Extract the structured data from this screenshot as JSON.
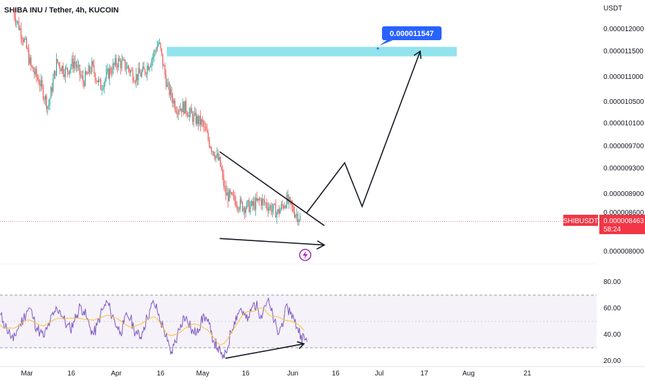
{
  "chart_data": {
    "type": "candlestick",
    "title": "SHIBA INU / Tether, 4h, KUCOIN",
    "currency_label": "USDT",
    "y_ticks": [
      "0.000012000",
      "0.000011500",
      "0.000011000",
      "0.000010500",
      "0.000010100",
      "0.000009700",
      "0.000009300",
      "0.000008900",
      "0.000008600",
      "0.000008000"
    ],
    "x_ticks": [
      "Mar",
      "16",
      "Apr",
      "16",
      "May",
      "16",
      "Jun",
      "16",
      "Jul",
      "17",
      "Aug",
      "21"
    ],
    "ticker": {
      "symbol": "SHIBUSDT",
      "price": "0.000008463",
      "countdown": "58:24"
    },
    "target": {
      "label": "0.000011547",
      "value": 1.1547e-05
    },
    "target_zone": {
      "low": 1.14e-05,
      "high": 1.16e-05
    },
    "price_series": {
      "x": [
        "Feb 26",
        "Mar 1",
        "Mar 3",
        "Mar 6",
        "Mar 9",
        "Mar 12",
        "Mar 15",
        "Mar 18",
        "Mar 21",
        "Mar 24",
        "Mar 27",
        "Mar 30",
        "Apr 2",
        "Apr 5",
        "Apr 8",
        "Apr 11",
        "Apr 14",
        "Apr 16",
        "Apr 19",
        "Apr 22",
        "Apr 25",
        "Apr 28",
        "May 1",
        "May 4",
        "May 7",
        "May 9",
        "May 12",
        "May 15",
        "May 18",
        "May 21",
        "May 24",
        "May 27",
        "May 30",
        "Jun 2",
        "Jun 4"
      ],
      "close": [
        1.24e-05,
        1.17e-05,
        1.12e-05,
        1.09e-05,
        1.04e-05,
        1.13e-05,
        1.11e-05,
        1.13e-05,
        1.09e-05,
        1.12e-05,
        1.08e-05,
        1.11e-05,
        1.13e-05,
        1.12e-05,
        1.1e-05,
        1.11e-05,
        1.14e-05,
        1.17e-05,
        1.08e-05,
        1.04e-05,
        1.04e-05,
        1.02e-05,
        1.01e-05,
        9.7e-06,
        9.4e-06,
        8.9e-06,
        8.8e-06,
        8.7e-06,
        8.7e-06,
        8.8e-06,
        8.7e-06,
        8.6e-06,
        8.8e-06,
        8.6e-06,
        8.5e-06
      ]
    },
    "pattern": {
      "name": "falling wedge",
      "upper_line": [
        [
          "May 7",
          9.6e-06
        ],
        [
          "Jun 12",
          8.4e-06
        ]
      ],
      "lower_line": [
        [
          "May 7",
          8.2e-06
        ],
        [
          "Jun 12",
          8.1e-06
        ]
      ],
      "projection": [
        [
          "Jun 6",
          8.6e-06
        ],
        [
          "Jun 19",
          9.4e-06
        ],
        [
          "Jun 25",
          8.7e-06
        ],
        [
          "Jul 15",
          1.15e-05
        ]
      ]
    },
    "rsi": {
      "ticks": [
        "80.00",
        "60.00",
        "40.00",
        "20.00"
      ],
      "band": [
        30,
        70
      ],
      "values": [
        55,
        50,
        45,
        40,
        35,
        43,
        48,
        52,
        58,
        60,
        52,
        45,
        42,
        38,
        44,
        50,
        55,
        60,
        58,
        52,
        47,
        44,
        50,
        55,
        62,
        58,
        52,
        45,
        40,
        47,
        55,
        60,
        65,
        58,
        52,
        46,
        42,
        48,
        55,
        52,
        45,
        40,
        38,
        46,
        53,
        60,
        64,
        58,
        50,
        44,
        35,
        25,
        32,
        40,
        48,
        54,
        50,
        45,
        40,
        45,
        48,
        55,
        50,
        42,
        35,
        30,
        25,
        22,
        30,
        42,
        50,
        56,
        60,
        55,
        50,
        58,
        64,
        60,
        55,
        62,
        66,
        58,
        50,
        40,
        46,
        55,
        60,
        57,
        50,
        45,
        40,
        36
      ],
      "divergence_line": [
        [
          "May 9",
          22
        ],
        [
          "Jun 5",
          33
        ]
      ]
    },
    "colors": {
      "up": "#26a69a",
      "down": "#ef5350",
      "target_zone": "#80deea",
      "badge": "#2962ff",
      "rsi_line": "#7e57c2",
      "rsi_ma": "#fbc02d",
      "rsi_band": "#7e57c2"
    },
    "grid": false
  }
}
